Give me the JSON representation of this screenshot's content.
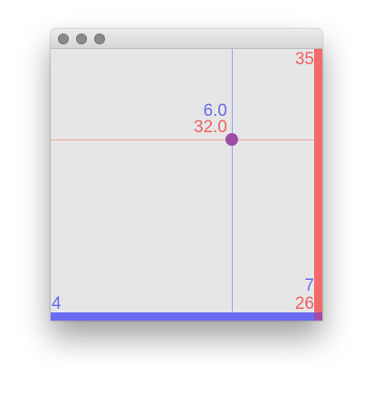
{
  "readout": {
    "x_value": "6.0",
    "y_value": "32.0"
  },
  "axes": {
    "x_min_label": "4",
    "x_max_label": "7",
    "y_min_label": "26",
    "y_max_label": "35"
  },
  "cursor": {
    "x": 6.0,
    "y": 32.0
  },
  "scale": {
    "x_range": [
      4,
      7
    ],
    "y_range": [
      26,
      35
    ]
  },
  "colors": {
    "x_axis": "#6b6bf2",
    "y_axis": "#f26b6b",
    "point": "#9b4fa7",
    "plot_bg": "#e6e6e6"
  }
}
